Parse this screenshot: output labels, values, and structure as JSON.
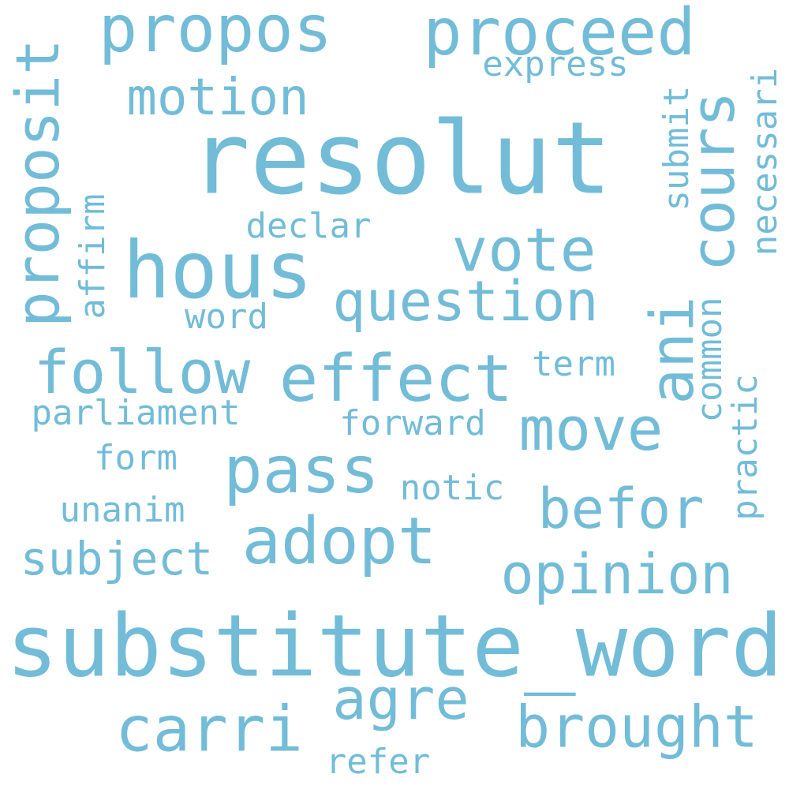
{
  "palette": {
    "word": "#72bcd8",
    "background": "#ffffff"
  },
  "words": {
    "resolut": "resolut",
    "substitute_word": "substitute_word",
    "hous": "hous",
    "propos": "propos",
    "proceed": "proceed",
    "proposit": "proposit",
    "vote": "vote",
    "question": "question",
    "effect": "effect",
    "follow": "follow",
    "pass": "pass",
    "adopt": "adopt",
    "move": "move",
    "befor": "befor",
    "opinion": "opinion",
    "brought": "brought",
    "carri": "carri",
    "agre": "agre",
    "cours": "cours",
    "ani": "ani",
    "motion": "motion",
    "express": "express",
    "declar": "declar",
    "word": "word",
    "affirm": "affirm",
    "submit": "submit",
    "necessari": "necessari",
    "common": "common",
    "term": "term",
    "parliament": "parliament",
    "forward": "forward",
    "form": "form",
    "notic": "notic",
    "unanim": "unanim",
    "subject": "subject",
    "practic": "practic",
    "refer": "refer"
  }
}
